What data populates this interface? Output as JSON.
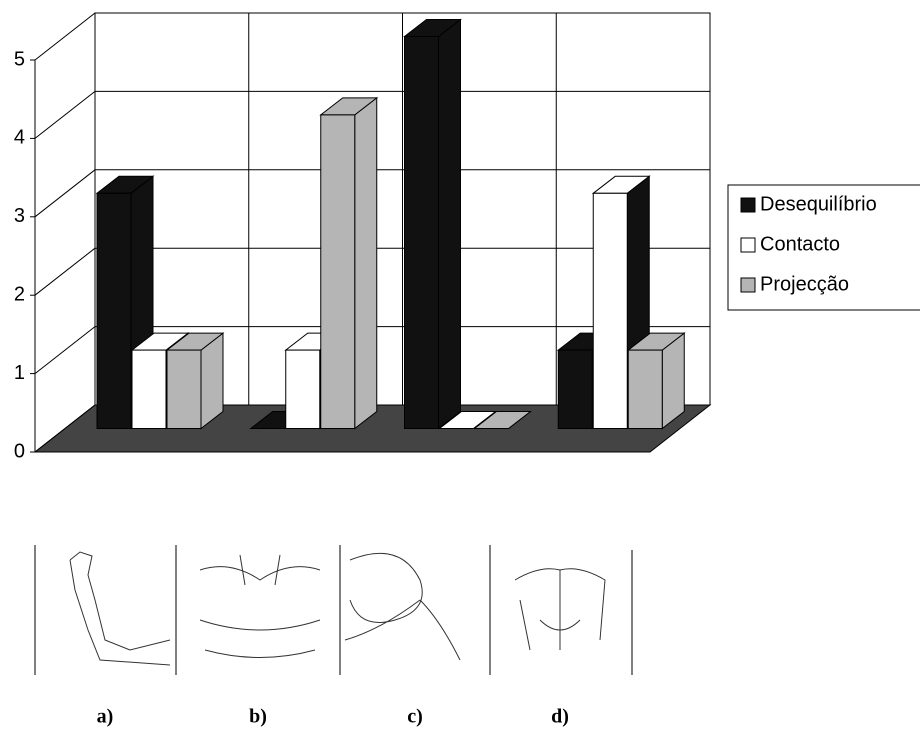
{
  "chart_data": {
    "type": "bar3d",
    "categories": [
      "a)",
      "b)",
      "c)",
      "d)"
    ],
    "series": [
      {
        "name": "Desequilíbrio",
        "color": "#111111",
        "values": [
          3,
          0,
          5,
          1
        ]
      },
      {
        "name": "Contacto",
        "color": "#ffffff",
        "values": [
          1,
          1,
          0,
          3
        ]
      },
      {
        "name": "Projecção",
        "color": "#b5b5b5",
        "values": [
          1,
          4,
          0,
          1
        ]
      }
    ],
    "ylim": [
      0,
      5
    ],
    "yticks": [
      0,
      1,
      2,
      3,
      4,
      5
    ],
    "grid": true,
    "legend": "right"
  }
}
